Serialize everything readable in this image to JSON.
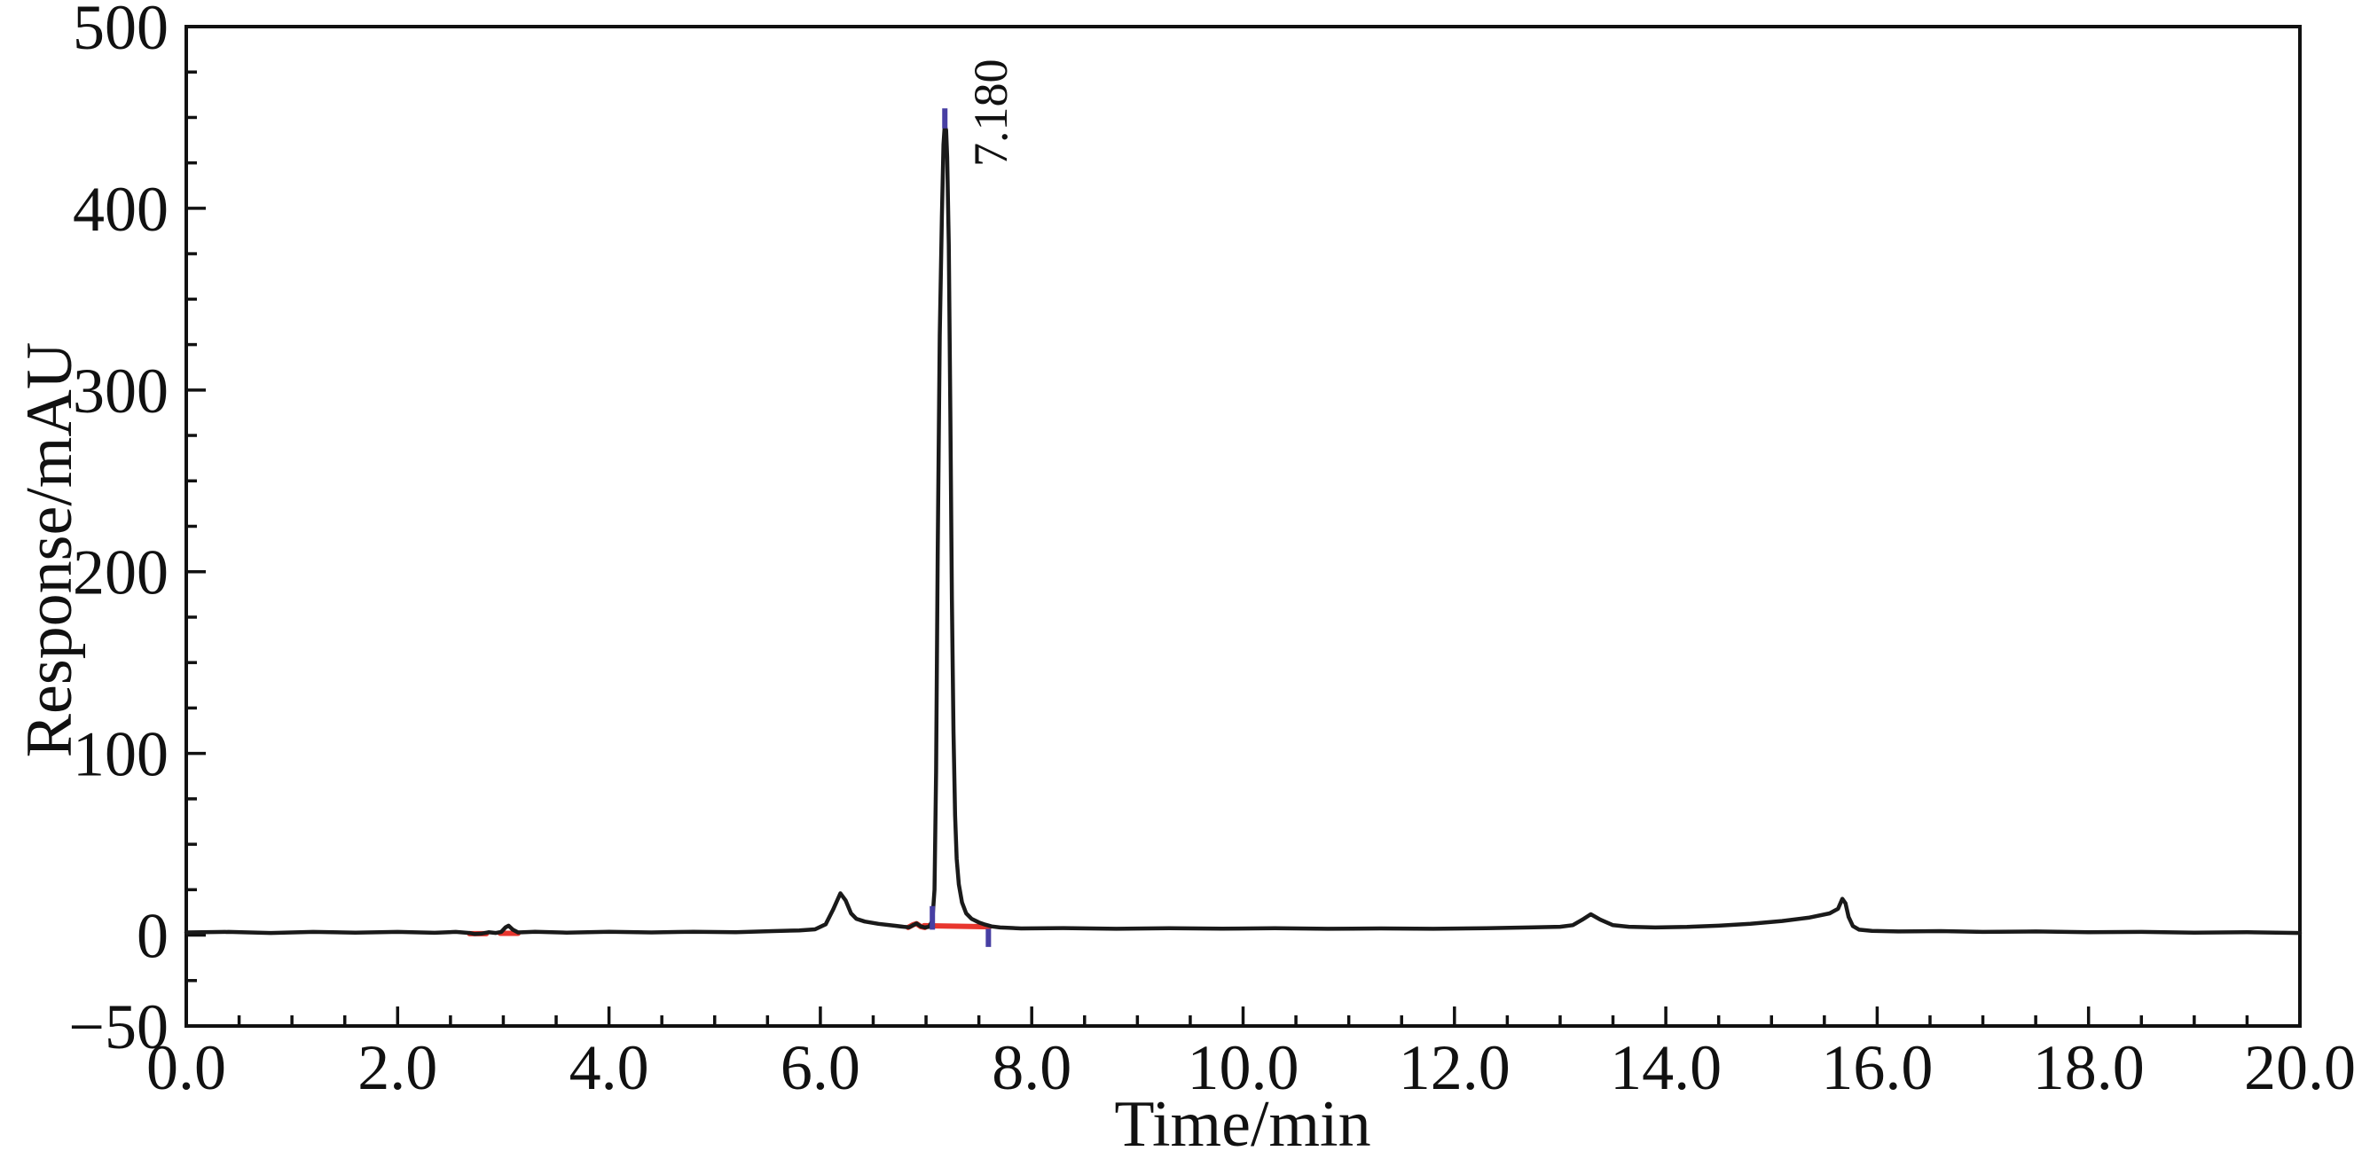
{
  "figure": {
    "background": "#ffffff",
    "kind": "HPLC chromatogram"
  },
  "chart_data": {
    "type": "line",
    "title": "",
    "xlabel": "Time/min",
    "ylabel": "Response/mAU",
    "xlim": [
      0.0,
      20.0
    ],
    "ylim": [
      -50,
      500
    ],
    "grid": false,
    "legend": null,
    "x_major_ticks": [
      {
        "value": 0,
        "label": "0.0"
      },
      {
        "value": 2,
        "label": "2.0"
      },
      {
        "value": 4,
        "label": "4.0"
      },
      {
        "value": 6,
        "label": "6.0"
      },
      {
        "value": 8,
        "label": "8.0"
      },
      {
        "value": 10,
        "label": "10.0"
      },
      {
        "value": 12,
        "label": "12.0"
      },
      {
        "value": 14,
        "label": "14.0"
      },
      {
        "value": 16,
        "label": "16.0"
      },
      {
        "value": 18,
        "label": "18.0"
      },
      {
        "value": 20,
        "label": "20.0"
      }
    ],
    "x_minor_step": 0.5,
    "y_major_ticks": [
      {
        "value": -50,
        "label": "−50"
      },
      {
        "value": 0,
        "label": "0"
      },
      {
        "value": 100,
        "label": "100"
      },
      {
        "value": 200,
        "label": "200"
      },
      {
        "value": 300,
        "label": "300"
      },
      {
        "value": 400,
        "label": "400"
      },
      {
        "value": 500,
        "label": "500"
      }
    ],
    "y_minor_step": 25,
    "colors": {
      "trace": "#1a1a1a",
      "axis": "#111111",
      "integration": "#e8362e",
      "marker": "#473fa3"
    },
    "peaks": [
      {
        "label": "7.180",
        "time_min": 7.18,
        "apex_mAU": 445
      }
    ],
    "trace_points": [
      [
        0.0,
        1.5
      ],
      [
        0.4,
        1.8
      ],
      [
        0.8,
        1.2
      ],
      [
        1.2,
        1.8
      ],
      [
        1.6,
        1.4
      ],
      [
        2.0,
        1.8
      ],
      [
        2.35,
        1.3
      ],
      [
        2.55,
        1.8
      ],
      [
        2.68,
        1.2
      ],
      [
        2.73,
        0.6
      ],
      [
        2.79,
        0.8
      ],
      [
        2.86,
        1.6
      ],
      [
        2.93,
        1.2
      ],
      [
        2.98,
        1.8
      ],
      [
        3.02,
        4.2
      ],
      [
        3.05,
        5.2
      ],
      [
        3.09,
        3.0
      ],
      [
        3.14,
        1.5
      ],
      [
        3.3,
        1.9
      ],
      [
        3.6,
        1.4
      ],
      [
        4.0,
        1.9
      ],
      [
        4.4,
        1.5
      ],
      [
        4.8,
        1.9
      ],
      [
        5.2,
        1.6
      ],
      [
        5.55,
        2.2
      ],
      [
        5.8,
        2.6
      ],
      [
        5.95,
        3.2
      ],
      [
        6.05,
        6.0
      ],
      [
        6.12,
        14.0
      ],
      [
        6.19,
        23.0
      ],
      [
        6.24,
        19.0
      ],
      [
        6.29,
        12.0
      ],
      [
        6.34,
        9.0
      ],
      [
        6.42,
        7.5
      ],
      [
        6.55,
        6.2
      ],
      [
        6.7,
        5.2
      ],
      [
        6.8,
        4.5
      ],
      [
        6.84,
        4.3
      ],
      [
        6.88,
        5.6
      ],
      [
        6.91,
        6.4
      ],
      [
        6.95,
        4.8
      ],
      [
        6.99,
        4.2
      ],
      [
        7.03,
        4.6
      ],
      [
        7.06,
        8.0
      ],
      [
        7.08,
        25.0
      ],
      [
        7.095,
        90.0
      ],
      [
        7.11,
        210.0
      ],
      [
        7.13,
        330.0
      ],
      [
        7.15,
        395.0
      ],
      [
        7.165,
        435.0
      ],
      [
        7.175,
        444.0
      ],
      [
        7.18,
        445.0
      ],
      [
        7.19,
        443.0
      ],
      [
        7.2,
        428.0
      ],
      [
        7.215,
        380.0
      ],
      [
        7.23,
        285.0
      ],
      [
        7.245,
        185.0
      ],
      [
        7.26,
        112.0
      ],
      [
        7.275,
        66.0
      ],
      [
        7.29,
        42.0
      ],
      [
        7.31,
        28.0
      ],
      [
        7.34,
        18.0
      ],
      [
        7.38,
        12.0
      ],
      [
        7.43,
        9.0
      ],
      [
        7.5,
        7.0
      ],
      [
        7.56,
        5.8
      ],
      [
        7.62,
        4.8
      ],
      [
        7.7,
        4.2
      ],
      [
        7.9,
        3.7
      ],
      [
        8.3,
        3.9
      ],
      [
        8.8,
        3.5
      ],
      [
        9.3,
        3.8
      ],
      [
        9.8,
        3.6
      ],
      [
        10.3,
        3.8
      ],
      [
        10.8,
        3.5
      ],
      [
        11.3,
        3.7
      ],
      [
        11.8,
        3.5
      ],
      [
        12.3,
        3.8
      ],
      [
        12.7,
        4.2
      ],
      [
        13.0,
        4.6
      ],
      [
        13.12,
        5.5
      ],
      [
        13.21,
        8.5
      ],
      [
        13.29,
        11.5
      ],
      [
        13.38,
        8.5
      ],
      [
        13.5,
        5.5
      ],
      [
        13.65,
        4.6
      ],
      [
        13.9,
        4.2
      ],
      [
        14.2,
        4.5
      ],
      [
        14.5,
        5.2
      ],
      [
        14.8,
        6.2
      ],
      [
        15.1,
        7.8
      ],
      [
        15.35,
        9.6
      ],
      [
        15.55,
        12.0
      ],
      [
        15.63,
        14.5
      ],
      [
        15.67,
        20.0
      ],
      [
        15.7,
        17.5
      ],
      [
        15.73,
        10.0
      ],
      [
        15.77,
        5.0
      ],
      [
        15.83,
        3.0
      ],
      [
        15.95,
        2.3
      ],
      [
        16.2,
        2.0
      ],
      [
        16.6,
        2.2
      ],
      [
        17.0,
        1.8
      ],
      [
        17.5,
        2.0
      ],
      [
        18.0,
        1.6
      ],
      [
        18.5,
        1.8
      ],
      [
        19.0,
        1.4
      ],
      [
        19.5,
        1.6
      ],
      [
        20.0,
        1.2
      ]
    ],
    "integration_segments": [
      {
        "name": "baseline-mark-2.7",
        "points": [
          [
            2.68,
            0.8
          ],
          [
            2.84,
            0.8
          ]
        ]
      },
      {
        "name": "baseline-mark-3.05",
        "points": [
          [
            2.97,
            1.0
          ],
          [
            3.14,
            1.0
          ]
        ]
      },
      {
        "name": "minor-peak-mark-6.9",
        "points": [
          [
            6.83,
            4.2
          ],
          [
            6.88,
            5.8
          ],
          [
            6.91,
            6.3
          ],
          [
            6.95,
            4.7
          ],
          [
            6.99,
            4.2
          ]
        ]
      },
      {
        "name": "main-peak-baseline",
        "points": [
          [
            6.98,
            5.2
          ],
          [
            7.6,
            4.6
          ]
        ]
      }
    ],
    "peak_markers": [
      {
        "name": "peak-start-tick",
        "time_min": 7.06,
        "from_mAU": 3.0,
        "to_mAU": 16.0
      },
      {
        "name": "peak-apex-tick",
        "time_min": 7.178,
        "from_mAU": 444.0,
        "to_mAU": 455.0
      },
      {
        "name": "peak-end-tick",
        "time_min": 7.59,
        "from_mAU": 3.5,
        "to_mAU": -6.5
      }
    ]
  }
}
